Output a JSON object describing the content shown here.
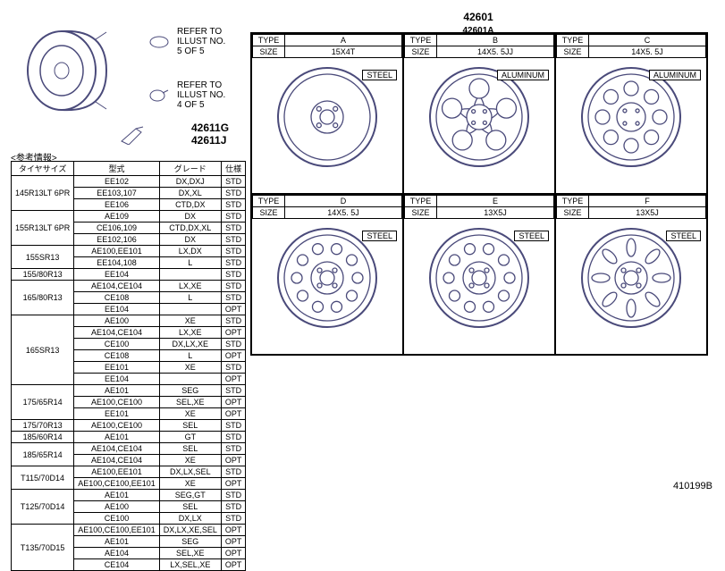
{
  "foot_code": "410199B",
  "grid_top_label": "42601",
  "grid_sub_label": "42601A",
  "iso_callouts": [
    {
      "text_lines": [
        "REFER TO",
        "ILLUST NO.",
        "5 OF 5"
      ]
    },
    {
      "text_lines": [
        "REFER TO",
        "ILLUST NO.",
        "4 OF 5"
      ]
    }
  ],
  "part_numbers": [
    "42611G",
    "42611J"
  ],
  "info_header": [
    "タイヤサイズ",
    "型式",
    "グレード",
    "仕様"
  ],
  "info_header_label": "<参考情報>",
  "info_rows": [
    [
      "145R13LT 6PR",
      "EE102",
      "DX,DXJ",
      "STD"
    ],
    [
      "",
      "EE103,107",
      "DX,XL",
      "STD"
    ],
    [
      "",
      "EE106",
      "CTD,DX",
      "STD"
    ],
    [
      "155R13LT 6PR",
      "AE109",
      "DX",
      "STD"
    ],
    [
      "",
      "CE106,109",
      "CTD,DX,XL",
      "STD"
    ],
    [
      "",
      "EE102,106",
      "DX",
      "STD"
    ],
    [
      "155SR13",
      "AE100,EE101",
      "LX,DX",
      "STD"
    ],
    [
      "",
      "EE104,108",
      "L",
      "STD"
    ],
    [
      "155/80R13",
      "EE104",
      "",
      "STD"
    ],
    [
      "165/80R13",
      "AE104,CE104",
      "LX,XE",
      "STD"
    ],
    [
      "",
      "CE108",
      "L",
      "STD"
    ],
    [
      "",
      "EE104",
      "",
      "OPT"
    ],
    [
      "165SR13",
      "AE100",
      "XE",
      "STD"
    ],
    [
      "",
      "AE104,CE104",
      "LX,XE",
      "OPT"
    ],
    [
      "",
      "CE100",
      "DX,LX,XE",
      "STD"
    ],
    [
      "",
      "CE108",
      "L",
      "OPT"
    ],
    [
      "",
      "EE101",
      "XE",
      "STD"
    ],
    [
      "",
      "EE104",
      "",
      "OPT"
    ],
    [
      "175/65R14",
      "AE101",
      "SEG",
      "STD"
    ],
    [
      "",
      "AE100,CE100",
      "SEL,XE",
      "OPT"
    ],
    [
      "",
      "EE101",
      "XE",
      "OPT"
    ],
    [
      "175/70R13",
      "AE100,CE100",
      "SEL",
      "STD"
    ],
    [
      "185/60R14",
      "AE101",
      "GT",
      "STD"
    ],
    [
      "185/65R14",
      "AE104,CE104",
      "SEL",
      "STD"
    ],
    [
      "",
      "AE104,CE104",
      "XE",
      "OPT"
    ],
    [
      "T115/70D14",
      "AE100,EE101",
      "DX,LX,SEL",
      "STD"
    ],
    [
      "",
      "AE100,CE100,EE101",
      "XE",
      "OPT"
    ],
    [
      "T125/70D14",
      "AE101",
      "SEG,GT",
      "STD"
    ],
    [
      "",
      "AE100",
      "SEL",
      "STD"
    ],
    [
      "",
      "CE100",
      "DX,LX",
      "STD"
    ],
    [
      "T135/70D15",
      "AE100,CE100,EE101",
      "DX,LX,XE,SEL",
      "OPT"
    ],
    [
      "",
      "AE101",
      "SEG",
      "OPT"
    ],
    [
      "",
      "AE104",
      "SEL,XE",
      "OPT"
    ],
    [
      "",
      "CE104",
      "LX,SEL,XE",
      "OPT"
    ]
  ],
  "cells": [
    {
      "type_label": "TYPE",
      "type_val": "A",
      "size_label": "SIZE",
      "size_val": "15X4T",
      "material": "STEEL",
      "wheel": "steel-plain"
    },
    {
      "type_label": "TYPE",
      "type_val": "B",
      "size_label": "SIZE",
      "size_val": "14X5. 5JJ",
      "material": "ALUMINUM",
      "wheel": "alloy-5spoke"
    },
    {
      "type_label": "TYPE",
      "type_val": "C",
      "size_label": "SIZE",
      "size_val": "14X5. 5J",
      "material": "ALUMINUM",
      "wheel": "alloy-holes"
    },
    {
      "type_label": "TYPE",
      "type_val": "D",
      "size_label": "SIZE",
      "size_val": "14X5. 5J",
      "material": "STEEL",
      "wheel": "steel-holes"
    },
    {
      "type_label": "TYPE",
      "type_val": "E",
      "size_label": "SIZE",
      "size_val": "13X5J",
      "material": "STEEL",
      "wheel": "steel-holes"
    },
    {
      "type_label": "TYPE",
      "type_val": "F",
      "size_label": "SIZE",
      "size_val": "13X5J",
      "material": "STEEL",
      "wheel": "steel-slots"
    }
  ]
}
